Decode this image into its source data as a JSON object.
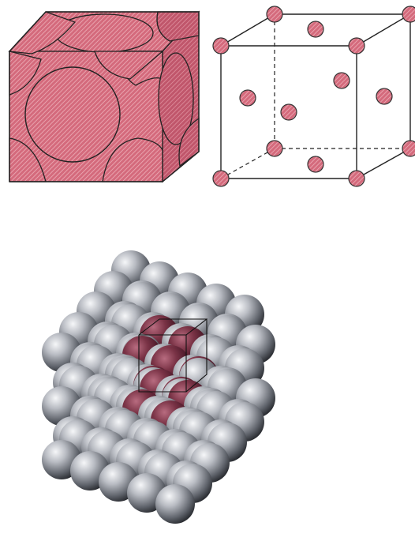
{
  "colors": {
    "atom_red": "#d46a7c",
    "atom_red_light": "#eeb0ba",
    "atom_red_dark": "#a8445a",
    "edge": "#222222",
    "sphere_gray_light": "#e4e6ea",
    "sphere_gray_dark": "#2c2e33",
    "sphere_maroon_light": "#a35a6e",
    "sphere_maroon_dark": "#2e0e18",
    "background": "#ffffff"
  },
  "figures": [
    {
      "id": "hard-sphere-unit-cell",
      "kind": "fcc-hard-sphere-model"
    },
    {
      "id": "reduced-sphere-unit-cell",
      "kind": "fcc-reduced-sphere-model",
      "atom_count": 14
    },
    {
      "id": "crystal-aggregate",
      "kind": "fcc-many-atom-aggregate",
      "highlighted_unit_cell": true
    }
  ]
}
